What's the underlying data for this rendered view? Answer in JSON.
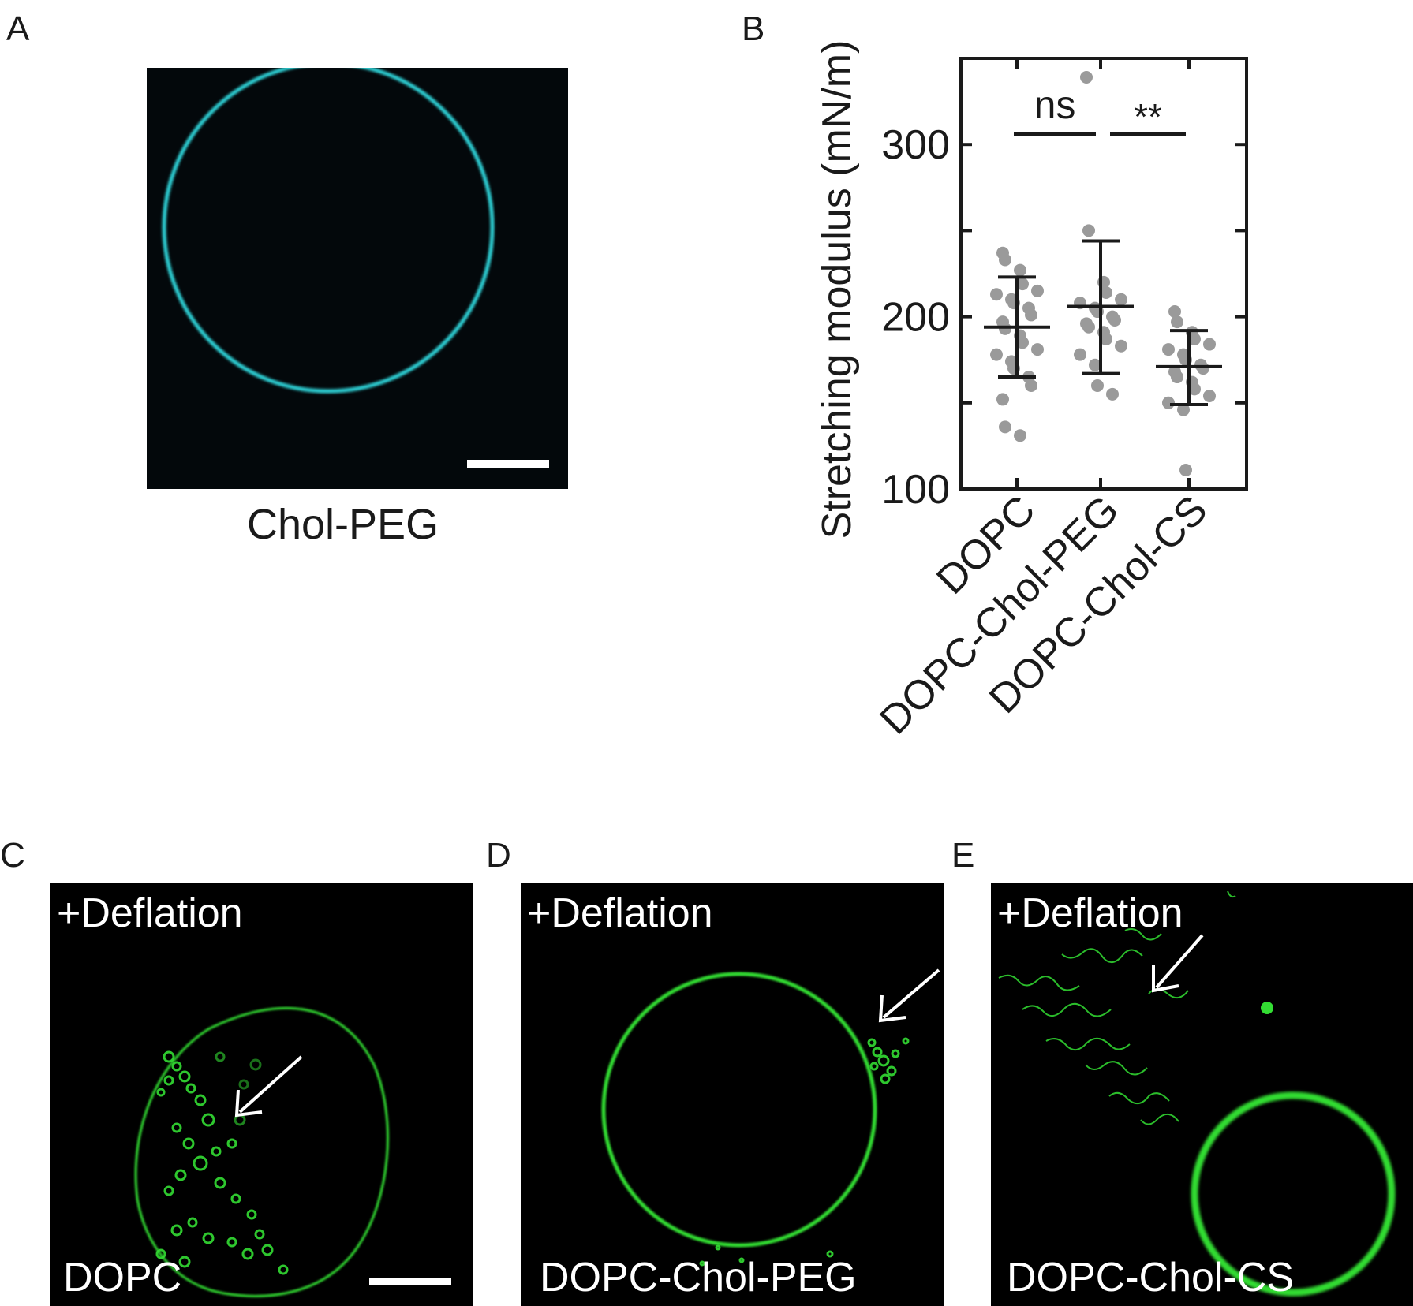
{
  "panels": {
    "a": {
      "letter": "A",
      "caption": "Chol-PEG",
      "vesicle_color": "#2fd4d9"
    },
    "b": {
      "letter": "B"
    },
    "c": {
      "letter": "C",
      "treatment": "+Deflation",
      "label": "DOPC",
      "vesicle_color": "#33dd33"
    },
    "d": {
      "letter": "D",
      "treatment": "+Deflation",
      "label": "DOPC-Chol-PEG",
      "vesicle_color": "#33dd33"
    },
    "e": {
      "letter": "E",
      "treatment": "+Deflation",
      "label": "DOPC-Chol-CS",
      "vesicle_color": "#33dd33"
    }
  },
  "chart_data": {
    "type": "scatter",
    "subtype": "dot plot with mean ± SD",
    "ylabel": "Stretching modulus (mN/m)",
    "xlabel": "",
    "ylim": [
      100,
      350
    ],
    "yticks": [
      100,
      200,
      300
    ],
    "minor_yticks": [
      150,
      250
    ],
    "categories": [
      "DOPC",
      "DOPC-Chol-PEG",
      "DOPC-Chol-CS"
    ],
    "point_color": "#9a9a9a",
    "line_color": "#1a1a1a",
    "series": [
      {
        "name": "DOPC",
        "mean": 194,
        "sd_low": 165,
        "sd_high": 223,
        "points": [
          237,
          233,
          227,
          219,
          215,
          213,
          210,
          208,
          205,
          201,
          197,
          193,
          189,
          185,
          181,
          178,
          174,
          170,
          165,
          160,
          152,
          136,
          131
        ]
      },
      {
        "name": "DOPC-Chol-PEG",
        "mean": 206,
        "sd_low": 167,
        "sd_high": 244,
        "points": [
          339,
          250,
          220,
          214,
          210,
          208,
          205,
          203,
          200,
          198,
          196,
          194,
          191,
          187,
          183,
          178,
          172,
          160,
          155
        ]
      },
      {
        "name": "DOPC-Chol-CS",
        "mean": 171,
        "sd_low": 149,
        "sd_high": 192,
        "points": [
          203,
          197,
          191,
          187,
          184,
          181,
          178,
          175,
          172,
          170,
          168,
          165,
          162,
          158,
          154,
          150,
          146,
          111
        ]
      }
    ],
    "annotations": [
      {
        "text": "ns",
        "from": 0,
        "to": 1,
        "y": 306
      },
      {
        "text": "**",
        "from": 1,
        "to": 2,
        "y": 306
      }
    ]
  }
}
